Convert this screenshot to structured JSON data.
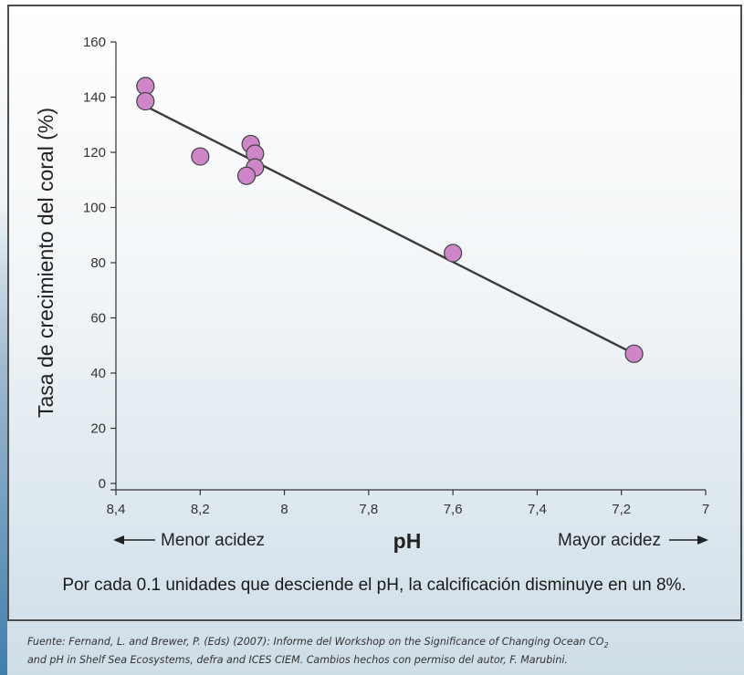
{
  "chart_data": {
    "type": "scatter",
    "ylabel": "Tasa de crecimiento del coral (%)",
    "xlabel": "pH",
    "xlim": [
      8.4,
      7.0
    ],
    "ylim": [
      0,
      160
    ],
    "x_axis_reversed": true,
    "x_ticks": [
      "8,4",
      "8,2",
      "8",
      "7,8",
      "7,6",
      "7,4",
      "7,2",
      "7"
    ],
    "x_tick_values": [
      8.4,
      8.2,
      8.0,
      7.8,
      7.6,
      7.4,
      7.2,
      7.0
    ],
    "y_ticks": [
      "0",
      "20",
      "40",
      "60",
      "80",
      "100",
      "120",
      "140",
      "160"
    ],
    "y_tick_values": [
      0,
      20,
      40,
      60,
      80,
      100,
      120,
      140,
      160
    ],
    "points": [
      {
        "x": 8.33,
        "y": 144
      },
      {
        "x": 8.33,
        "y": 138.5
      },
      {
        "x": 8.2,
        "y": 118.5
      },
      {
        "x": 8.08,
        "y": 123
      },
      {
        "x": 8.07,
        "y": 119.5
      },
      {
        "x": 8.07,
        "y": 114.5
      },
      {
        "x": 8.09,
        "y": 111.5
      },
      {
        "x": 7.6,
        "y": 83.5
      },
      {
        "x": 7.17,
        "y": 47
      }
    ],
    "trendline": {
      "x": [
        8.32,
        7.17
      ],
      "y": [
        136,
        47
      ]
    },
    "left_annotation": "Menor acidez",
    "right_annotation": "Mayor acidez",
    "grid": false,
    "marker_color": "#cf86c8",
    "marker_edge_color": "#404040",
    "line_color": "#3a3a3a"
  },
  "caption": "Por cada 0.1 unidades que desciende el pH, la calcificación disminuye en un 8%.",
  "source": {
    "line1_before_sub": "Fuente: Fernand, L. and Brewer, P. (Eds) (2007): Informe del Workshop on the Significance of Changing Ocean CO",
    "line1_sub": "2",
    "line2": "and pH in Shelf Sea Ecosystems, defra and ICES CIEM. Cambios hechos con permiso del autor, F. Marubini."
  }
}
